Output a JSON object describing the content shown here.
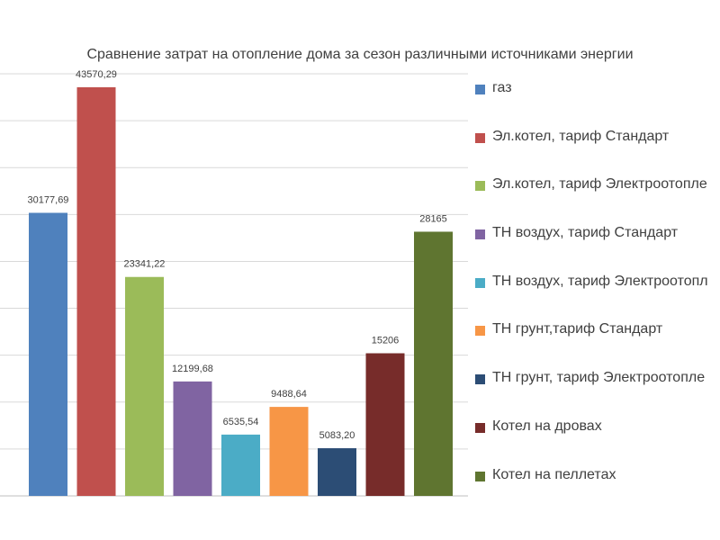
{
  "chart_data": {
    "type": "bar",
    "title": "Сравнение затрат на отопление дома за сезон различными источниками энергии",
    "xlabel": "",
    "ylabel": "",
    "ylim": [
      0,
      45000
    ],
    "grid": true,
    "legend_position": "right",
    "categories": [
      "газ",
      "Эл.котел, тариф Стандарт",
      "Эл.котел, тариф Электроотопление",
      "ТН воздух, тариф Стандарт",
      "ТН воздух, тариф Электроотопление",
      "ТН грунт,тариф Стандарт",
      "ТН грунт, тариф Электроотопление",
      "Котел на дровах",
      "Котел на пеллетах"
    ],
    "legend_labels": [
      "газ",
      "Эл.котел, тариф Стандарт",
      "Эл.котел, тариф Электроотопле",
      "ТН воздух, тариф Стандарт",
      "ТН воздух, тариф Электроотопл",
      "ТН грунт,тариф Стандарт",
      "ТН грунт, тариф Электроотопле",
      "Котел на дровах",
      "Котел на пеллетах"
    ],
    "values": [
      30177.69,
      43570.29,
      23341.22,
      12199.68,
      6535.54,
      9488.64,
      5083.2,
      15206,
      28165
    ],
    "data_labels": [
      "30177,69",
      "43570,29",
      "23341,22",
      "12199,68",
      "6535,54",
      "9488,64",
      "5083,20",
      "15206",
      "28165"
    ],
    "colors": [
      "#4f81bd",
      "#c0504d",
      "#9bbb59",
      "#8064a2",
      "#4bacc6",
      "#f79646",
      "#2c4d75",
      "#772c2a",
      "#5f7530"
    ]
  }
}
